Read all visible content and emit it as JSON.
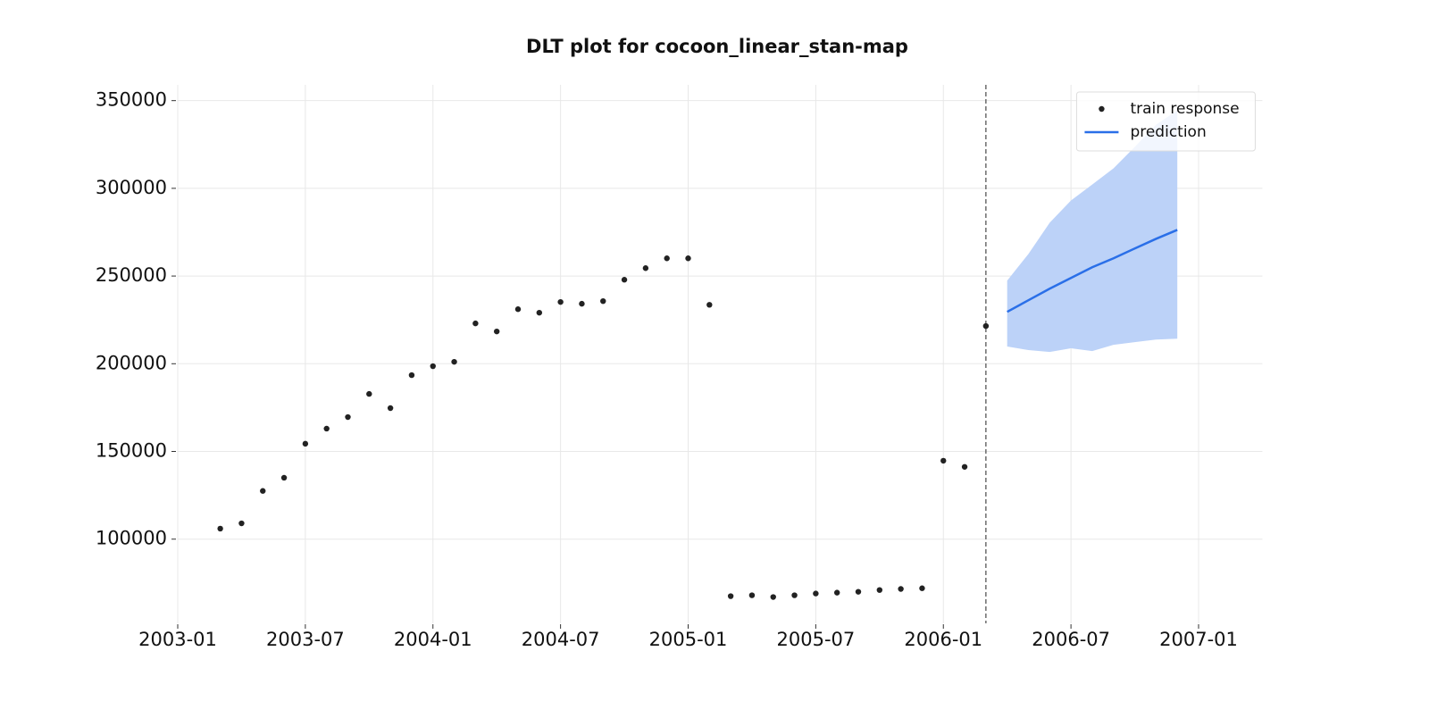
{
  "chart_data": {
    "type": "line",
    "title": "DLT plot for cocoon_linear_stan-map",
    "xlim": [
      "2003-01",
      "2007-04"
    ],
    "xticks": [
      "2003-01",
      "2003-07",
      "2004-01",
      "2004-07",
      "2005-01",
      "2005-07",
      "2006-01",
      "2006-07",
      "2007-01"
    ],
    "ylim": [
      52000,
      359000
    ],
    "yticks": [
      100000,
      150000,
      200000,
      250000,
      300000,
      350000
    ],
    "grid": true,
    "legend": "upper right",
    "vline": "2006-03",
    "series": [
      {
        "name": "train response",
        "type": "scatter",
        "color": "#222222",
        "x": [
          "2003-03",
          "2003-04",
          "2003-05",
          "2003-06",
          "2003-07",
          "2003-08",
          "2003-09",
          "2003-10",
          "2003-11",
          "2003-12",
          "2004-01",
          "2004-02",
          "2004-03",
          "2004-04",
          "2004-05",
          "2004-06",
          "2004-07",
          "2004-08",
          "2004-09",
          "2004-10",
          "2004-11",
          "2004-12",
          "2005-01",
          "2005-02",
          "2005-03",
          "2005-04",
          "2005-05",
          "2005-06",
          "2005-07",
          "2005-08",
          "2005-09",
          "2005-10",
          "2005-11",
          "2005-12",
          "2006-01",
          "2006-02",
          "2006-03"
        ],
        "values": [
          106000,
          109000,
          127500,
          135000,
          154400,
          163000,
          169600,
          182800,
          174700,
          193500,
          198600,
          201100,
          223000,
          218400,
          231100,
          229100,
          235200,
          234200,
          235700,
          247900,
          254500,
          260100,
          260100,
          233600,
          67500,
          68000,
          67000,
          68000,
          69000,
          69500,
          70000,
          71000,
          71600,
          72000,
          144700,
          141200,
          221500
        ]
      },
      {
        "name": "prediction",
        "type": "line",
        "color": "#2a6fe8",
        "band_color": "#bcd2f8",
        "x": [
          "2006-04",
          "2006-05",
          "2006-06",
          "2006-07",
          "2006-08",
          "2006-09",
          "2006-10",
          "2006-11",
          "2006-12"
        ],
        "values": [
          229600,
          236200,
          242800,
          248900,
          255000,
          260100,
          265700,
          271200,
          276300
        ],
        "upper": [
          247400,
          262600,
          280400,
          293100,
          302200,
          311400,
          323600,
          336300,
          344400
        ],
        "lower": [
          209800,
          207800,
          206700,
          208800,
          207200,
          210800,
          212300,
          213800,
          214300
        ]
      }
    ]
  }
}
